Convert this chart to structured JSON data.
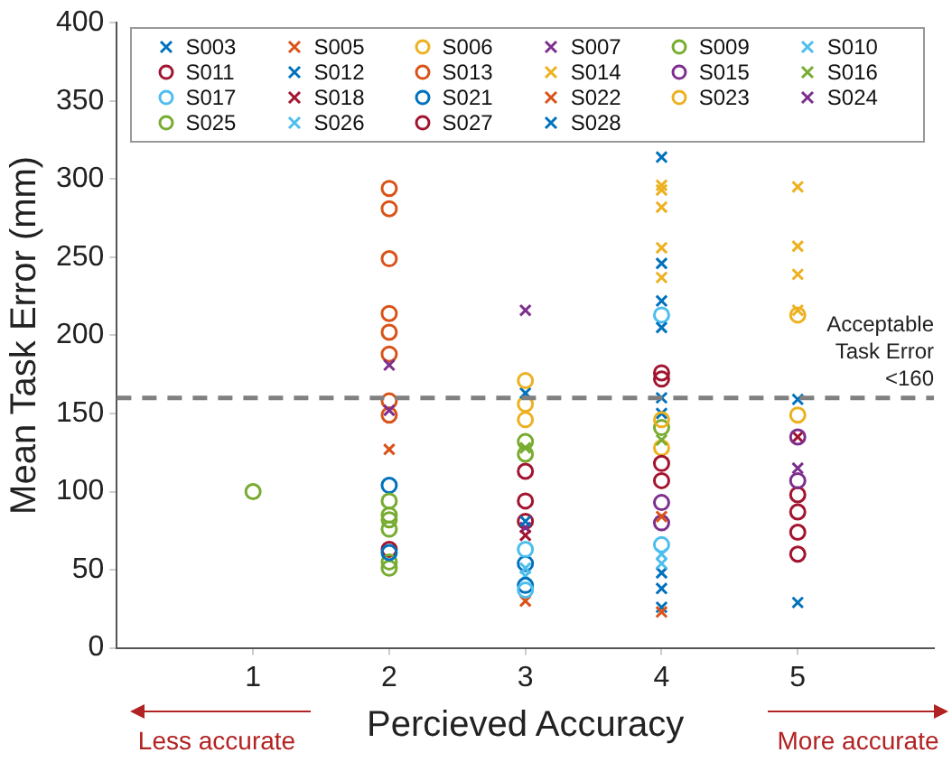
{
  "chart_data": {
    "type": "scatter",
    "xlabel": "Percieved Accuracy",
    "ylabel": "Mean Task Error (mm)",
    "xlim": [
      0,
      6
    ],
    "xticks": [
      1,
      2,
      3,
      4,
      5
    ],
    "ylim": [
      0,
      400
    ],
    "yticks": [
      0,
      50,
      100,
      150,
      200,
      250,
      300,
      350,
      400
    ],
    "grid": false,
    "legend": "top",
    "ref_lines": [
      {
        "axis": "y",
        "value": 160,
        "label": "Acceptable Task Error <160",
        "color": "#808080",
        "line_style": "dashed"
      }
    ],
    "annotations": [
      "Less accurate",
      "More accurate"
    ],
    "series": [
      {
        "name": "S003",
        "color": "#0072bd",
        "marker": "cross",
        "x": [
          4,
          4,
          3
        ],
        "values": [
          314,
          246,
          81
        ]
      },
      {
        "name": "S005",
        "color": "#d95319",
        "marker": "cross",
        "x": [
          2,
          4
        ],
        "values": [
          127,
          84
        ]
      },
      {
        "name": "S006",
        "color": "#edb120",
        "marker": "circle",
        "x": [
          3,
          3,
          4
        ],
        "values": [
          171,
          146,
          146
        ]
      },
      {
        "name": "S007",
        "color": "#7e2f8e",
        "marker": "cross",
        "x": [
          2,
          2,
          3
        ],
        "values": [
          181,
          152,
          216
        ]
      },
      {
        "name": "S009",
        "color": "#77ac30",
        "marker": "circle",
        "x": [
          1,
          2,
          2
        ],
        "values": [
          100,
          94,
          85
        ]
      },
      {
        "name": "S010",
        "color": "#4dbeee",
        "marker": "cross",
        "x": [
          3,
          4
        ],
        "values": [
          51,
          60
        ]
      },
      {
        "name": "S011",
        "color": "#a2142f",
        "marker": "circle",
        "x": [
          3,
          3,
          4
        ],
        "values": [
          113,
          94,
          118
        ]
      },
      {
        "name": "S012",
        "color": "#0072bd",
        "marker": "cross",
        "x": [
          3,
          4,
          4
        ],
        "values": [
          163,
          222,
          205
        ]
      },
      {
        "name": "S013",
        "color": "#d95319",
        "marker": "circle",
        "x": [
          2,
          2,
          2,
          2,
          2,
          2,
          2,
          2
        ],
        "values": [
          294,
          281,
          249,
          214,
          202,
          188,
          158,
          149
        ]
      },
      {
        "name": "S014",
        "color": "#edb120",
        "marker": "cross",
        "x": [
          4,
          4,
          4,
          4,
          4,
          5,
          5,
          5,
          5
        ],
        "values": [
          296,
          293,
          282,
          256,
          237,
          295,
          257,
          239,
          216
        ]
      },
      {
        "name": "S015",
        "color": "#7e2f8e",
        "marker": "circle",
        "x": [
          4,
          4,
          5,
          5
        ],
        "values": [
          93,
          80,
          135,
          107
        ]
      },
      {
        "name": "S016",
        "color": "#77ac30",
        "marker": "cross",
        "x": [
          3,
          4
        ],
        "values": [
          128,
          133
        ]
      },
      {
        "name": "S017",
        "color": "#4dbeee",
        "marker": "circle",
        "x": [
          3,
          3,
          4,
          4
        ],
        "values": [
          63,
          37,
          213,
          66
        ]
      },
      {
        "name": "S018",
        "color": "#a2142f",
        "marker": "cross",
        "x": [
          3,
          5
        ],
        "values": [
          72,
          135
        ]
      },
      {
        "name": "S021",
        "color": "#0072bd",
        "marker": "circle",
        "x": [
          2,
          2,
          3,
          3
        ],
        "values": [
          104,
          61,
          54,
          40
        ]
      },
      {
        "name": "S022",
        "color": "#d95319",
        "marker": "cross",
        "x": [
          4,
          3
        ],
        "values": [
          23,
          30
        ]
      },
      {
        "name": "S023",
        "color": "#edb120",
        "marker": "circle",
        "x": [
          3,
          4,
          5,
          5
        ],
        "values": [
          156,
          128,
          213,
          149
        ]
      },
      {
        "name": "S024",
        "color": "#7e2f8e",
        "marker": "cross",
        "x": [
          3,
          5
        ],
        "values": [
          77,
          115
        ]
      },
      {
        "name": "S025",
        "color": "#77ac30",
        "marker": "circle",
        "x": [
          2,
          2,
          2,
          2,
          3,
          3,
          4
        ],
        "values": [
          82,
          76,
          55,
          51,
          132,
          124,
          141
        ]
      },
      {
        "name": "S026",
        "color": "#4dbeee",
        "marker": "cross",
        "x": [
          3,
          4
        ],
        "values": [
          46,
          54
        ]
      },
      {
        "name": "S027",
        "color": "#a2142f",
        "marker": "circle",
        "x": [
          2,
          3,
          4,
          4,
          4,
          5,
          5,
          5,
          5
        ],
        "values": [
          63,
          81,
          176,
          172,
          107,
          98,
          87,
          74,
          60
        ]
      },
      {
        "name": "S028",
        "color": "#0072bd",
        "marker": "cross",
        "x": [
          4,
          4,
          4,
          4,
          4,
          5,
          5
        ],
        "values": [
          160,
          150,
          48,
          38,
          26,
          159,
          29
        ]
      }
    ]
  }
}
